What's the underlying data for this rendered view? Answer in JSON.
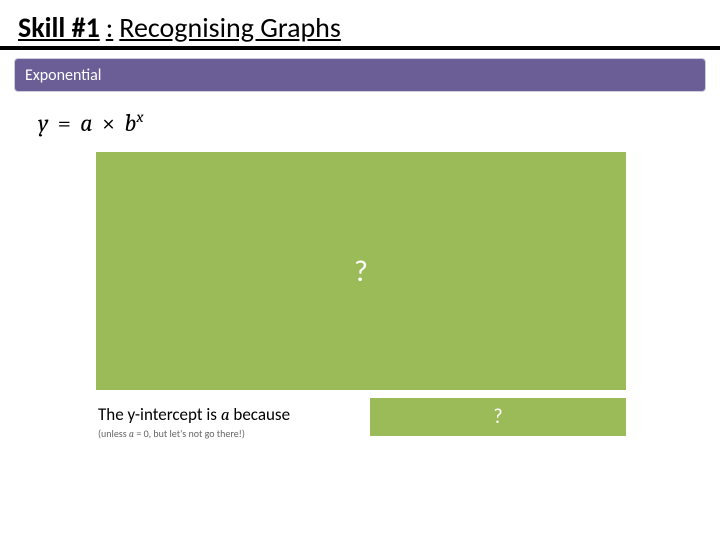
{
  "title": {
    "skill_label": "Skill #1",
    "colon": ": ",
    "topic": "Recognising Graphs"
  },
  "band": {
    "label": "Exponential",
    "bg_color": "#6b5e96",
    "text_color": "#ffffff"
  },
  "equation": {
    "y": "y",
    "eq": " = ",
    "a": "a",
    "times": " × ",
    "b": "b",
    "x": "x"
  },
  "placeholders": {
    "main_text": "?",
    "small_text": "?",
    "bg_color": "#9bbb59",
    "text_color": "#ffffff"
  },
  "caption": {
    "line1_pre": "The y-intercept is ",
    "line1_var": "a",
    "line1_post": " because",
    "line2_pre": "(unless ",
    "line2_var": "a",
    "line2_mid": " = 0",
    "line2_post": ", but let's not go there!)"
  }
}
